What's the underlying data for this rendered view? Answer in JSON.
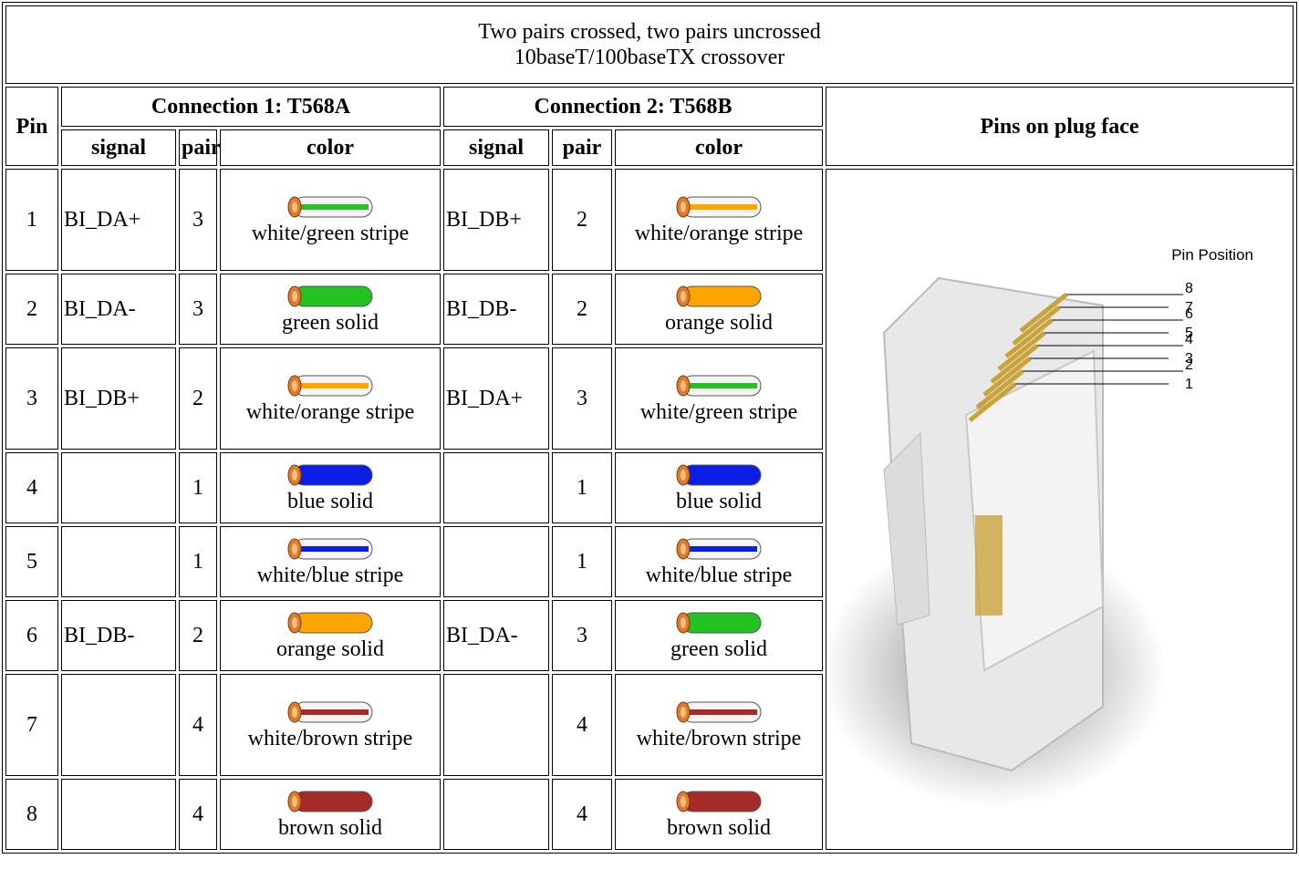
{
  "table": {
    "title": [
      "Two pairs crossed, two pairs uncrossed",
      "10baseT/100baseTX crossover"
    ],
    "headers": {
      "pin": "Pin",
      "connection_1": "Connection 1: T568A",
      "connection_2": "Connection 2: T568B",
      "plug": "Pins on plug face",
      "signal": "signal",
      "pair": "pair",
      "color": "color"
    },
    "rows": [
      [
        1,
        "BI_DA+",
        3,
        "white/green stripe",
        "BI_DB+",
        2,
        "white/orange stripe"
      ],
      [
        2,
        "BI_DA-",
        3,
        "green solid",
        "BI_DB-",
        2,
        "orange solid"
      ],
      [
        3,
        "BI_DB+",
        2,
        "white/orange stripe",
        "BI_DA+",
        3,
        "white/green stripe"
      ],
      [
        4,
        null,
        1,
        "blue solid",
        null,
        1,
        "blue solid"
      ],
      [
        5,
        null,
        1,
        "white/blue stripe",
        null,
        1,
        "white/blue stripe"
      ],
      [
        6,
        "BI_DB-",
        2,
        "orange solid",
        "BI_DA-",
        3,
        "green solid"
      ],
      [
        7,
        null,
        4,
        "white/brown stripe",
        null,
        4,
        "white/brown stripe"
      ],
      [
        8,
        null,
        4,
        "brown solid",
        null,
        4,
        "brown solid"
      ]
    ],
    "plug_image": {
      "label": "Pin Position",
      "pins": [
        8,
        7,
        6,
        5,
        4,
        3,
        2,
        1
      ]
    }
  }
}
